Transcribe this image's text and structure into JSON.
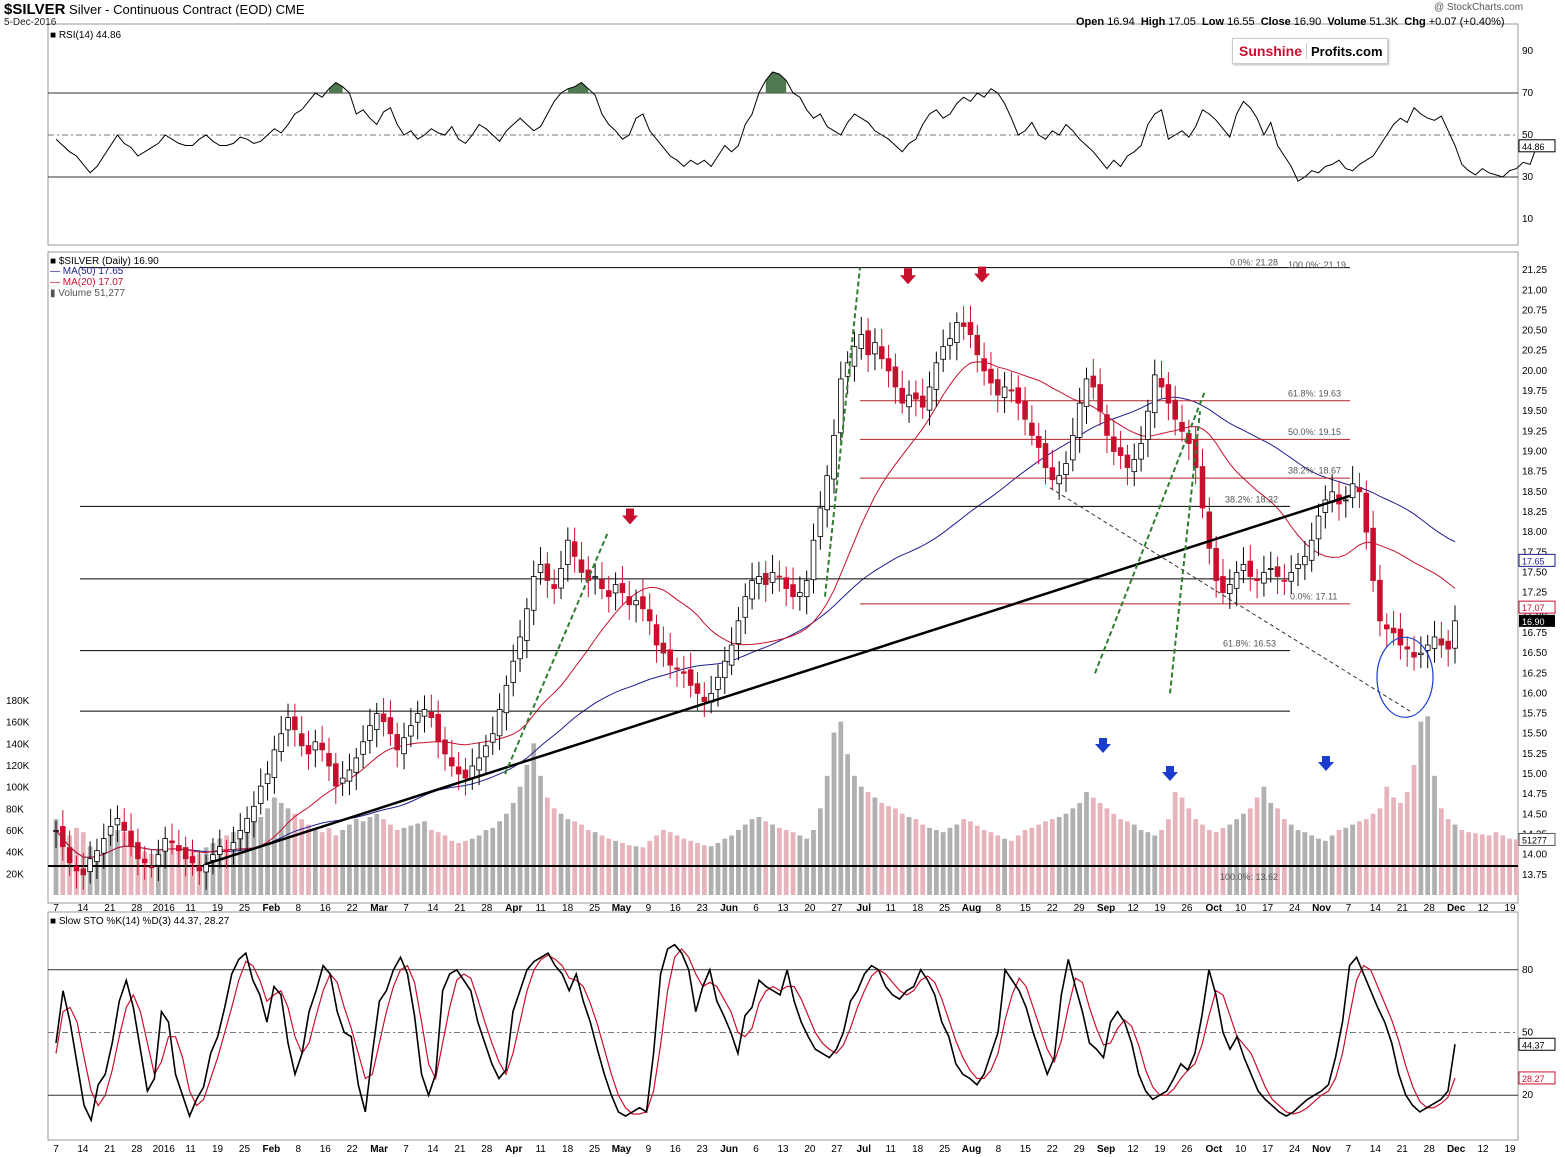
{
  "header": {
    "symbol": "$SILVER",
    "name": "Silver - Continuous Contract (EOD)",
    "exchange": "CME",
    "date": "5-Dec-2016",
    "credit": "@ StockCharts.com",
    "open_label": "Open",
    "open": "16.94",
    "high_label": "High",
    "high": "17.05",
    "low_label": "Low",
    "low": "16.55",
    "close_label": "Close",
    "close": "16.90",
    "volume_label": "Volume",
    "volume": "51.3K",
    "chg_label": "Chg",
    "chg": "+0.07 (+0.40%)",
    "logo_part1": "Sunshine",
    "logo_part2": "Profits.com"
  },
  "chart_data": [
    {
      "type": "line",
      "panel": "rsi",
      "label": "RSI(14) 44.86",
      "ylim": [
        0,
        100
      ],
      "y_ticks": [
        10,
        30,
        50,
        70,
        90
      ],
      "last_value_label": "44.86",
      "values": [
        48,
        45,
        42,
        40,
        36,
        32,
        35,
        40,
        45,
        50,
        46,
        44,
        40,
        42,
        44,
        46,
        50,
        48,
        46,
        45,
        45,
        48,
        50,
        47,
        45,
        45,
        46,
        49,
        48,
        46,
        47,
        50,
        53,
        51,
        55,
        60,
        62,
        66,
        70,
        68,
        72,
        75,
        73,
        70,
        60,
        62,
        58,
        55,
        61,
        63,
        55,
        50,
        52,
        48,
        50,
        53,
        51,
        50,
        54,
        48,
        46,
        50,
        55,
        53,
        50,
        47,
        52,
        55,
        58,
        55,
        52,
        54,
        60,
        66,
        70,
        72,
        73,
        75,
        72,
        69,
        60,
        55,
        52,
        48,
        50,
        58,
        60,
        52,
        48,
        44,
        40,
        38,
        35,
        38,
        36,
        38,
        35,
        40,
        45,
        42,
        45,
        55,
        60,
        70,
        76,
        80,
        79,
        76,
        70,
        68,
        62,
        58,
        60,
        54,
        52,
        50,
        56,
        60,
        58,
        56,
        52,
        50,
        48,
        45,
        42,
        46,
        48,
        55,
        60,
        62,
        58,
        60,
        65,
        68,
        66,
        70,
        68,
        72,
        70,
        65,
        58,
        50,
        52,
        56,
        50,
        48,
        52,
        50,
        55,
        52,
        48,
        45,
        42,
        38,
        34,
        38,
        35,
        40,
        42,
        45,
        55,
        60,
        62,
        48,
        50,
        52,
        49,
        54,
        62,
        60,
        57,
        53,
        49,
        60,
        66,
        63,
        58,
        50,
        56,
        45,
        40,
        35,
        28,
        30,
        33,
        32,
        35,
        36,
        38,
        34,
        33,
        36,
        38,
        40,
        45,
        50,
        55,
        58,
        56,
        63,
        60,
        58,
        57,
        59,
        52,
        45,
        36,
        33,
        31,
        34,
        32,
        31,
        30,
        33,
        34,
        37,
        36,
        44.86
      ]
    },
    {
      "type": "candlestick",
      "panel": "price",
      "label": "$SILVER (Daily) 16.90",
      "ylim": [
        13.5,
        21.4
      ],
      "y_ticks": [
        13.75,
        14.0,
        14.25,
        14.5,
        14.75,
        15.0,
        15.25,
        15.5,
        15.75,
        16.0,
        16.25,
        16.5,
        16.75,
        17.0,
        17.25,
        17.5,
        17.75,
        18.0,
        18.25,
        18.5,
        18.75,
        19.0,
        19.25,
        19.5,
        19.75,
        20.0,
        20.25,
        20.5,
        20.75,
        21.0,
        21.25
      ],
      "series": [
        {
          "name": "MA(50) 17.65",
          "color": "#1f1f8f",
          "last": "17.65"
        },
        {
          "name": "MA(20) 17.07",
          "color": "#c8102e",
          "last": "17.07"
        },
        {
          "name": "Volume 51,277",
          "color": "#888888",
          "last": "51277"
        }
      ],
      "closes": [
        14.3,
        14.1,
        13.9,
        13.8,
        13.75,
        13.95,
        14.05,
        14.2,
        14.35,
        14.45,
        14.3,
        14.1,
        13.95,
        13.9,
        13.85,
        14.0,
        14.2,
        14.15,
        14.05,
        13.95,
        13.9,
        13.8,
        13.88,
        14.0,
        14.1,
        14.05,
        14.15,
        14.3,
        14.45,
        14.6,
        14.85,
        15.0,
        15.3,
        15.5,
        15.7,
        15.55,
        15.35,
        15.25,
        15.4,
        15.3,
        15.1,
        14.85,
        14.95,
        15.05,
        15.2,
        15.4,
        15.6,
        15.75,
        15.65,
        15.5,
        15.3,
        15.45,
        15.6,
        15.75,
        15.8,
        15.7,
        15.4,
        15.25,
        15.1,
        15.0,
        14.95,
        15.1,
        15.2,
        15.35,
        15.5,
        15.8,
        16.1,
        16.4,
        16.7,
        17.05,
        17.45,
        17.6,
        17.4,
        17.3,
        17.55,
        17.9,
        17.7,
        17.5,
        17.4,
        17.45,
        17.3,
        17.2,
        17.35,
        17.25,
        17.1,
        17.15,
        17.05,
        16.9,
        16.6,
        16.5,
        16.35,
        16.3,
        16.25,
        16.1,
        16.0,
        15.9,
        16.0,
        16.2,
        16.4,
        16.6,
        16.9,
        17.2,
        17.4,
        17.45,
        17.35,
        17.5,
        17.45,
        17.3,
        17.2,
        17.25,
        17.4,
        17.9,
        18.3,
        18.7,
        19.2,
        19.9,
        20.1,
        20.3,
        20.45,
        20.2,
        20.35,
        20.15,
        20.0,
        19.8,
        19.6,
        19.7,
        19.65,
        19.55,
        19.8,
        20.1,
        20.3,
        20.4,
        20.6,
        20.55,
        20.45,
        20.2,
        20.0,
        19.85,
        19.7,
        19.8,
        19.75,
        19.6,
        19.4,
        19.2,
        19.05,
        18.8,
        18.65,
        18.7,
        18.85,
        19.2,
        19.6,
        19.9,
        19.8,
        19.5,
        19.2,
        19.0,
        18.95,
        18.8,
        18.9,
        19.1,
        19.5,
        19.95,
        19.8,
        19.6,
        19.4,
        19.25,
        19.1,
        18.8,
        18.3,
        17.8,
        17.4,
        17.25,
        17.35,
        17.5,
        17.6,
        17.45,
        17.4,
        17.5,
        17.55,
        17.45,
        17.4,
        17.5,
        17.6,
        17.7,
        17.9,
        18.2,
        18.4,
        18.5,
        18.35,
        18.4,
        18.6,
        18.5,
        18.0,
        17.4,
        16.9,
        16.8,
        16.75,
        16.6,
        16.55,
        16.45,
        16.5,
        16.6,
        16.7,
        16.6,
        16.55,
        16.9
      ],
      "volumes": [
        70,
        60,
        55,
        62,
        58,
        45,
        40,
        50,
        55,
        60,
        58,
        52,
        45,
        40,
        38,
        42,
        50,
        48,
        45,
        42,
        40,
        38,
        44,
        48,
        52,
        55,
        58,
        60,
        65,
        70,
        72,
        80,
        90,
        85,
        80,
        75,
        70,
        65,
        60,
        58,
        62,
        55,
        60,
        65,
        70,
        68,
        72,
        75,
        70,
        65,
        60,
        62,
        64,
        66,
        68,
        60,
        58,
        55,
        50,
        48,
        50,
        52,
        55,
        60,
        62,
        68,
        75,
        85,
        100,
        120,
        140,
        110,
        90,
        80,
        75,
        70,
        68,
        65,
        60,
        58,
        55,
        52,
        50,
        48,
        46,
        45,
        44,
        50,
        55,
        60,
        58,
        55,
        52,
        50,
        48,
        46,
        45,
        48,
        52,
        55,
        60,
        65,
        70,
        72,
        68,
        65,
        62,
        60,
        58,
        55,
        52,
        60,
        80,
        110,
        150,
        160,
        130,
        110,
        100,
        95,
        90,
        85,
        82,
        80,
        75,
        72,
        70,
        65,
        62,
        60,
        58,
        62,
        65,
        70,
        68,
        64,
        60,
        58,
        55,
        52,
        50,
        55,
        60,
        62,
        65,
        68,
        70,
        72,
        75,
        80,
        85,
        95,
        90,
        85,
        80,
        75,
        70,
        68,
        65,
        60,
        58,
        55,
        60,
        70,
        95,
        90,
        80,
        70,
        65,
        60,
        58,
        62,
        65,
        70,
        75,
        80,
        90,
        100,
        85,
        80,
        70,
        65,
        60,
        58,
        55,
        52,
        50,
        55,
        60,
        62,
        65,
        68,
        70,
        75,
        80,
        100,
        90,
        85,
        95,
        120,
        160,
        165,
        110,
        80,
        70,
        65,
        60,
        58,
        57,
        56,
        55,
        58,
        55,
        52,
        51.277
      ],
      "annotations": {
        "fib_top": [
          "0.0%: 21.28",
          "100.0%: 21.19"
        ],
        "fib_mid": [
          "61.8%: 19.63",
          "50.0%: 19.15",
          "38.2%: 18.67"
        ],
        "fib_low": [
          "38.2%: 18.32",
          "0.0%: 17.11",
          "61.8%: 16.53",
          "100.0%: 13.62"
        ]
      },
      "x_labels": [
        "7",
        "14",
        "21",
        "28",
        "2016",
        "11",
        "19",
        "25",
        "Feb",
        "8",
        "16",
        "22",
        "Mar",
        "7",
        "14",
        "21",
        "28",
        "Apr",
        "11",
        "18",
        "25",
        "May",
        "9",
        "16",
        "23",
        "Jun",
        "6",
        "13",
        "20",
        "27",
        "Jul",
        "11",
        "18",
        "25",
        "Aug",
        "8",
        "15",
        "22",
        "29",
        "Sep",
        "12",
        "19",
        "26",
        "Oct",
        "10",
        "17",
        "24",
        "Nov",
        "7",
        "14",
        "21",
        "28",
        "Dec",
        "12",
        "19"
      ]
    },
    {
      "type": "line",
      "panel": "stochastic",
      "label": "Slow STO %K(14) %D(3) 44.37, 28.27",
      "ylim": [
        0,
        100
      ],
      "y_ticks": [
        20,
        50,
        80
      ],
      "series": [
        {
          "name": "%K(14)",
          "color": "#000000",
          "last": "44.37"
        },
        {
          "name": "%D(3)",
          "color": "#c8102e",
          "last": "28.27"
        }
      ],
      "k_values": [
        45,
        70,
        55,
        35,
        15,
        8,
        25,
        30,
        45,
        65,
        75,
        62,
        42,
        22,
        28,
        60,
        55,
        30,
        20,
        10,
        18,
        24,
        40,
        48,
        62,
        78,
        85,
        88,
        75,
        68,
        55,
        72,
        68,
        45,
        30,
        40,
        60,
        70,
        82,
        78,
        60,
        50,
        48,
        25,
        12,
        40,
        65,
        70,
        80,
        86,
        78,
        58,
        30,
        20,
        30,
        70,
        78,
        80,
        75,
        70,
        55,
        45,
        35,
        28,
        32,
        60,
        70,
        80,
        84,
        86,
        88,
        82,
        78,
        70,
        78,
        65,
        55,
        42,
        30,
        20,
        12,
        10,
        12,
        14,
        12,
        40,
        78,
        90,
        92,
        88,
        80,
        60,
        72,
        80,
        65,
        58,
        50,
        40,
        58,
        62,
        75,
        72,
        70,
        68,
        80,
        65,
        55,
        48,
        42,
        40,
        38,
        42,
        50,
        65,
        70,
        78,
        82,
        80,
        72,
        68,
        66,
        70,
        72,
        80,
        75,
        68,
        55,
        48,
        35,
        30,
        28,
        25,
        30,
        40,
        50,
        80,
        75,
        70,
        62,
        50,
        40,
        30,
        38,
        68,
        85,
        72,
        60,
        45,
        42,
        38,
        55,
        60,
        55,
        45,
        30,
        22,
        18,
        20,
        22,
        28,
        35,
        32,
        40,
        58,
        80,
        68,
        50,
        42,
        48,
        38,
        30,
        22,
        18,
        15,
        12,
        10,
        12,
        15,
        18,
        20,
        22,
        25,
        38,
        55,
        82,
        86,
        78,
        70,
        62,
        55,
        45,
        30,
        20,
        15,
        12,
        14,
        16,
        18,
        22,
        44.37
      ],
      "d_values": [
        40,
        60,
        62,
        55,
        38,
        22,
        15,
        20,
        32,
        48,
        62,
        68,
        60,
        45,
        30,
        36,
        48,
        48,
        38,
        22,
        15,
        18,
        28,
        38,
        50,
        62,
        75,
        84,
        82,
        75,
        65,
        68,
        70,
        62,
        48,
        40,
        45,
        58,
        70,
        78,
        74,
        62,
        52,
        40,
        28,
        30,
        45,
        60,
        72,
        80,
        82,
        74,
        55,
        35,
        28,
        45,
        62,
        75,
        78,
        76,
        66,
        55,
        45,
        36,
        30,
        40,
        55,
        70,
        80,
        85,
        87,
        85,
        82,
        76,
        75,
        72,
        64,
        54,
        42,
        30,
        20,
        14,
        11,
        11,
        12,
        22,
        44,
        70,
        86,
        90,
        86,
        78,
        72,
        74,
        72,
        66,
        60,
        50,
        48,
        52,
        64,
        70,
        72,
        70,
        72,
        72,
        66,
        58,
        50,
        45,
        42,
        40,
        44,
        52,
        62,
        70,
        77,
        80,
        78,
        74,
        70,
        68,
        70,
        75,
        77,
        74,
        66,
        56,
        46,
        38,
        32,
        28,
        28,
        32,
        40,
        56,
        68,
        76,
        72,
        62,
        52,
        42,
        36,
        46,
        62,
        76,
        74,
        62,
        52,
        44,
        45,
        52,
        56,
        53,
        44,
        32,
        24,
        20,
        20,
        23,
        28,
        32,
        35,
        44,
        58,
        70,
        68,
        58,
        48,
        44,
        40,
        32,
        24,
        18,
        15,
        12,
        11,
        12,
        14,
        17,
        20,
        22,
        28,
        40,
        58,
        75,
        82,
        80,
        72,
        64,
        56,
        46,
        34,
        24,
        17,
        14,
        14,
        16,
        19,
        28.27
      ]
    }
  ],
  "colors": {
    "up_candle": "#ffffff",
    "down_candle": "#c8102e",
    "fib_line": "#b22222",
    "trend_green": "#2e7d32",
    "arrow_red": "#c8102e",
    "arrow_blue": "#1a3ccf",
    "rsi_fill": "#4f7a4f"
  }
}
